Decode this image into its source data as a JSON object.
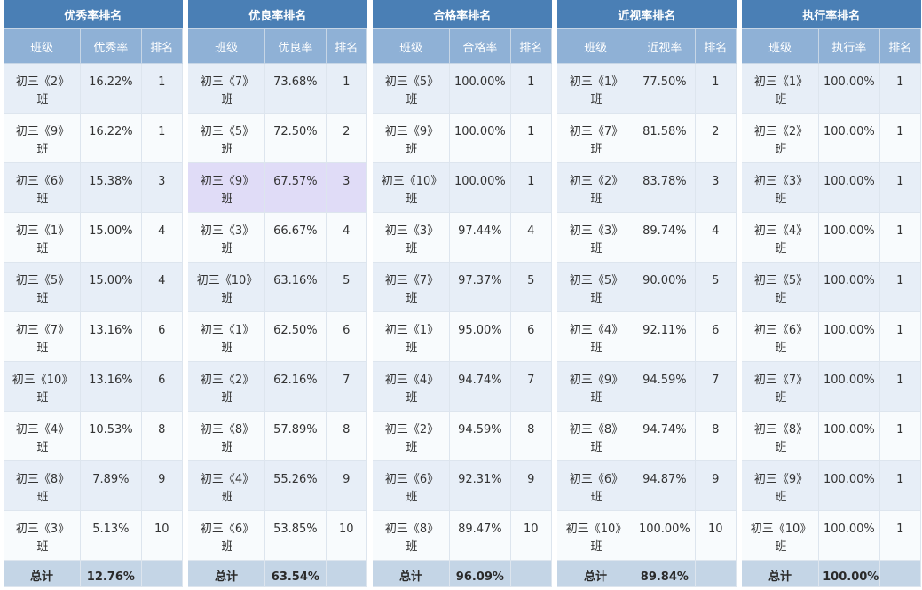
{
  "panels": [
    {
      "title": "优秀率排名",
      "headers": [
        "班级",
        "优秀率",
        "排名"
      ],
      "rows": [
        {
          "cls": "初三《2》班",
          "rate": "16.22%",
          "rank": "1"
        },
        {
          "cls": "初三《9》班",
          "rate": "16.22%",
          "rank": "1"
        },
        {
          "cls": "初三《6》班",
          "rate": "15.38%",
          "rank": "3"
        },
        {
          "cls": "初三《1》班",
          "rate": "15.00%",
          "rank": "4"
        },
        {
          "cls": "初三《5》班",
          "rate": "15.00%",
          "rank": "4"
        },
        {
          "cls": "初三《7》班",
          "rate": "13.16%",
          "rank": "6"
        },
        {
          "cls": "初三《10》班",
          "rate": "13.16%",
          "rank": "6"
        },
        {
          "cls": "初三《4》班",
          "rate": "10.53%",
          "rank": "8"
        },
        {
          "cls": "初三《8》班",
          "rate": "7.89%",
          "rank": "9"
        },
        {
          "cls": "初三《3》班",
          "rate": "5.13%",
          "rank": "10"
        }
      ],
      "total": {
        "label": "总计",
        "value": "12.76%"
      }
    },
    {
      "title": "优良率排名",
      "headers": [
        "班级",
        "优良率",
        "排名"
      ],
      "rows": [
        {
          "cls": "初三《7》班",
          "rate": "73.68%",
          "rank": "1"
        },
        {
          "cls": "初三《5》班",
          "rate": "72.50%",
          "rank": "2"
        },
        {
          "cls": "初三《9》班",
          "rate": "67.57%",
          "rank": "3",
          "highlight": true
        },
        {
          "cls": "初三《3》班",
          "rate": "66.67%",
          "rank": "4"
        },
        {
          "cls": "初三《10》班",
          "rate": "63.16%",
          "rank": "5"
        },
        {
          "cls": "初三《1》班",
          "rate": "62.50%",
          "rank": "6"
        },
        {
          "cls": "初三《2》班",
          "rate": "62.16%",
          "rank": "7"
        },
        {
          "cls": "初三《8》班",
          "rate": "57.89%",
          "rank": "8"
        },
        {
          "cls": "初三《4》班",
          "rate": "55.26%",
          "rank": "9"
        },
        {
          "cls": "初三《6》班",
          "rate": "53.85%",
          "rank": "10"
        }
      ],
      "total": {
        "label": "总计",
        "value": "63.54%"
      }
    },
    {
      "title": "合格率排名",
      "headers": [
        "班级",
        "合格率",
        "排名"
      ],
      "rows": [
        {
          "cls": "初三《5》班",
          "rate": "100.00%",
          "rank": "1"
        },
        {
          "cls": "初三《9》班",
          "rate": "100.00%",
          "rank": "1"
        },
        {
          "cls": "初三《10》班",
          "rate": "100.00%",
          "rank": "1"
        },
        {
          "cls": "初三《3》班",
          "rate": "97.44%",
          "rank": "4"
        },
        {
          "cls": "初三《7》班",
          "rate": "97.37%",
          "rank": "5"
        },
        {
          "cls": "初三《1》班",
          "rate": "95.00%",
          "rank": "6"
        },
        {
          "cls": "初三《4》班",
          "rate": "94.74%",
          "rank": "7"
        },
        {
          "cls": "初三《2》班",
          "rate": "94.59%",
          "rank": "8"
        },
        {
          "cls": "初三《6》班",
          "rate": "92.31%",
          "rank": "9"
        },
        {
          "cls": "初三《8》班",
          "rate": "89.47%",
          "rank": "10"
        }
      ],
      "total": {
        "label": "总计",
        "value": "96.09%"
      }
    },
    {
      "title": "近视率排名",
      "headers": [
        "班级",
        "近视率",
        "排名"
      ],
      "rows": [
        {
          "cls": "初三《1》班",
          "rate": "77.50%",
          "rank": "1"
        },
        {
          "cls": "初三《7》班",
          "rate": "81.58%",
          "rank": "2"
        },
        {
          "cls": "初三《2》班",
          "rate": "83.78%",
          "rank": "3"
        },
        {
          "cls": "初三《3》班",
          "rate": "89.74%",
          "rank": "4"
        },
        {
          "cls": "初三《5》班",
          "rate": "90.00%",
          "rank": "5"
        },
        {
          "cls": "初三《4》班",
          "rate": "92.11%",
          "rank": "6"
        },
        {
          "cls": "初三《9》班",
          "rate": "94.59%",
          "rank": "7"
        },
        {
          "cls": "初三《8》班",
          "rate": "94.74%",
          "rank": "8"
        },
        {
          "cls": "初三《6》班",
          "rate": "94.87%",
          "rank": "9"
        },
        {
          "cls": "初三《10》班",
          "rate": "100.00%",
          "rank": "10"
        }
      ],
      "total": {
        "label": "总计",
        "value": "89.84%"
      }
    },
    {
      "title": "执行率排名",
      "headers": [
        "班级",
        "执行率",
        "排名"
      ],
      "rows": [
        {
          "cls": "初三《1》班",
          "rate": "100.00%",
          "rank": "1"
        },
        {
          "cls": "初三《2》班",
          "rate": "100.00%",
          "rank": "1"
        },
        {
          "cls": "初三《3》班",
          "rate": "100.00%",
          "rank": "1"
        },
        {
          "cls": "初三《4》班",
          "rate": "100.00%",
          "rank": "1"
        },
        {
          "cls": "初三《5》班",
          "rate": "100.00%",
          "rank": "1"
        },
        {
          "cls": "初三《6》班",
          "rate": "100.00%",
          "rank": "1"
        },
        {
          "cls": "初三《7》班",
          "rate": "100.00%",
          "rank": "1"
        },
        {
          "cls": "初三《8》班",
          "rate": "100.00%",
          "rank": "1"
        },
        {
          "cls": "初三《9》班",
          "rate": "100.00%",
          "rank": "1"
        },
        {
          "cls": "初三《10》班",
          "rate": "100.00%",
          "rank": "1"
        }
      ],
      "total": {
        "label": "总计",
        "value": "100.00%"
      }
    }
  ]
}
